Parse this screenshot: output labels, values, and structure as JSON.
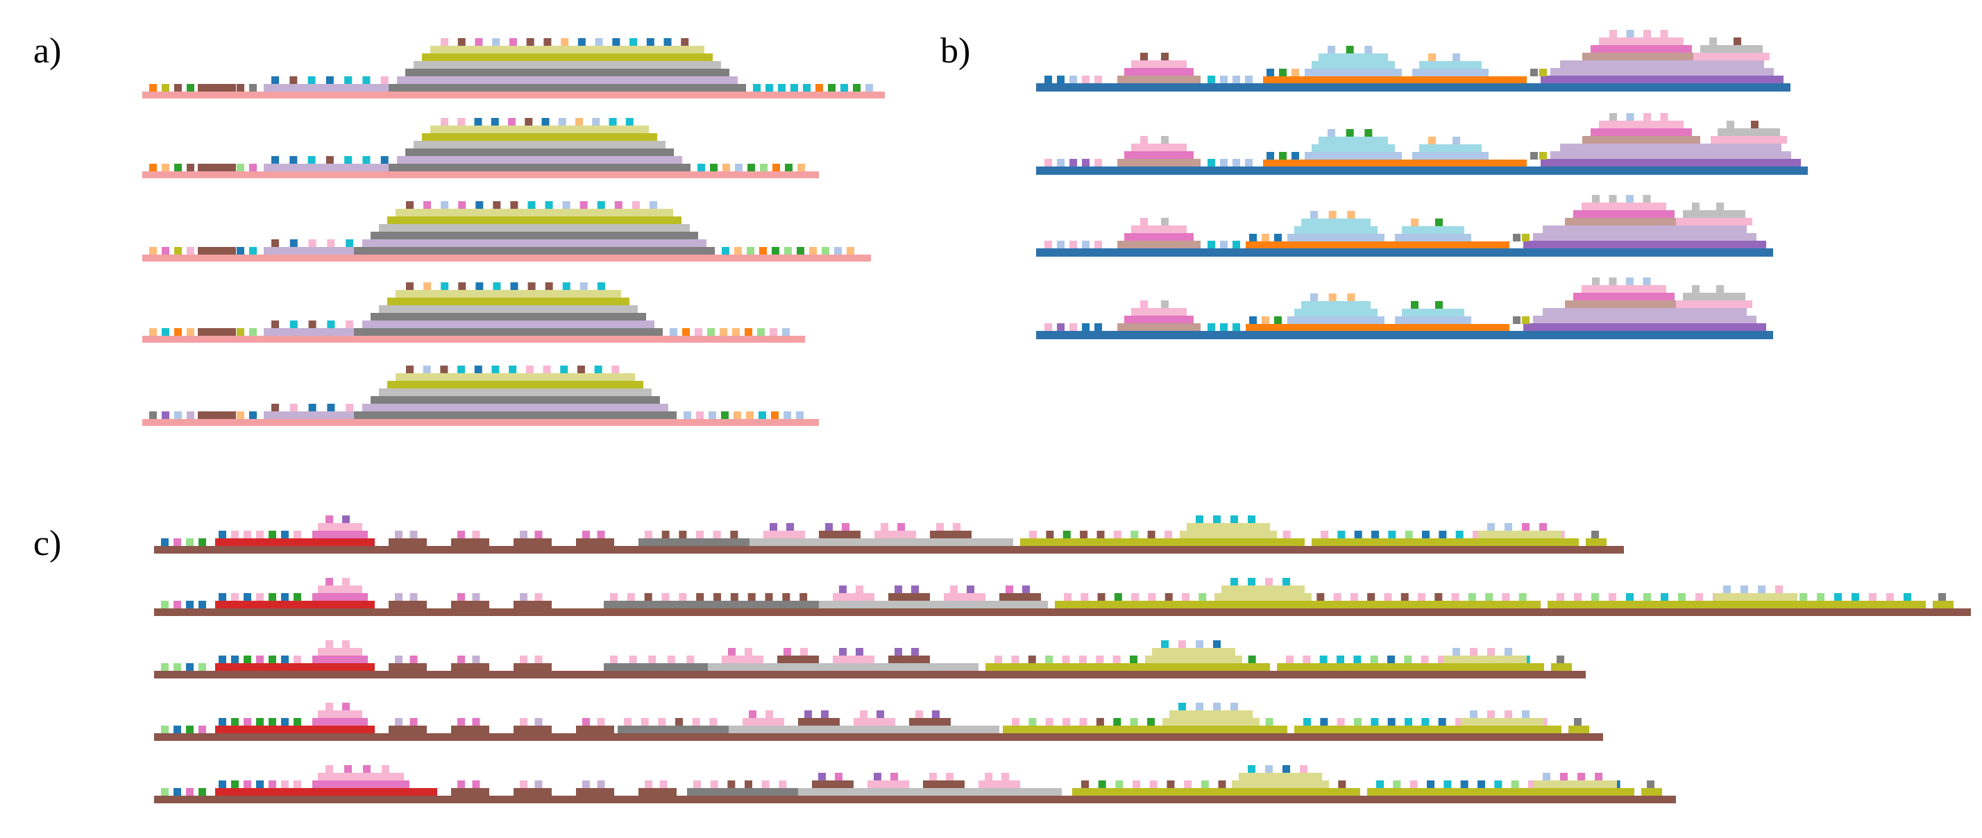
{
  "panel_labels": {
    "a": "a)",
    "b": "b)",
    "c": "c)"
  },
  "palette": {
    "salmon": "#f4a0a3",
    "steel_blue": "#2e72ac",
    "sienna": "#8c564b",
    "gray": "#7f7f7f",
    "light_gray": "#bfbfbf",
    "olive": "#bcbd22",
    "light_olive": "#dbdb8d",
    "lavender": "#c5b0d5",
    "purple": "#9467bd",
    "pink": "#f7b6d2",
    "magenta": "#e377c2",
    "rosy_brown": "#c49c94",
    "teal": "#17becf",
    "light_teal": "#9edae5",
    "light_blue": "#aec7e8",
    "blue": "#1f77b4",
    "orange": "#ff7f0e",
    "peach": "#ffbb78",
    "green": "#2ca02c",
    "light_green": "#98df8a",
    "red": "#d62728"
  }
}
